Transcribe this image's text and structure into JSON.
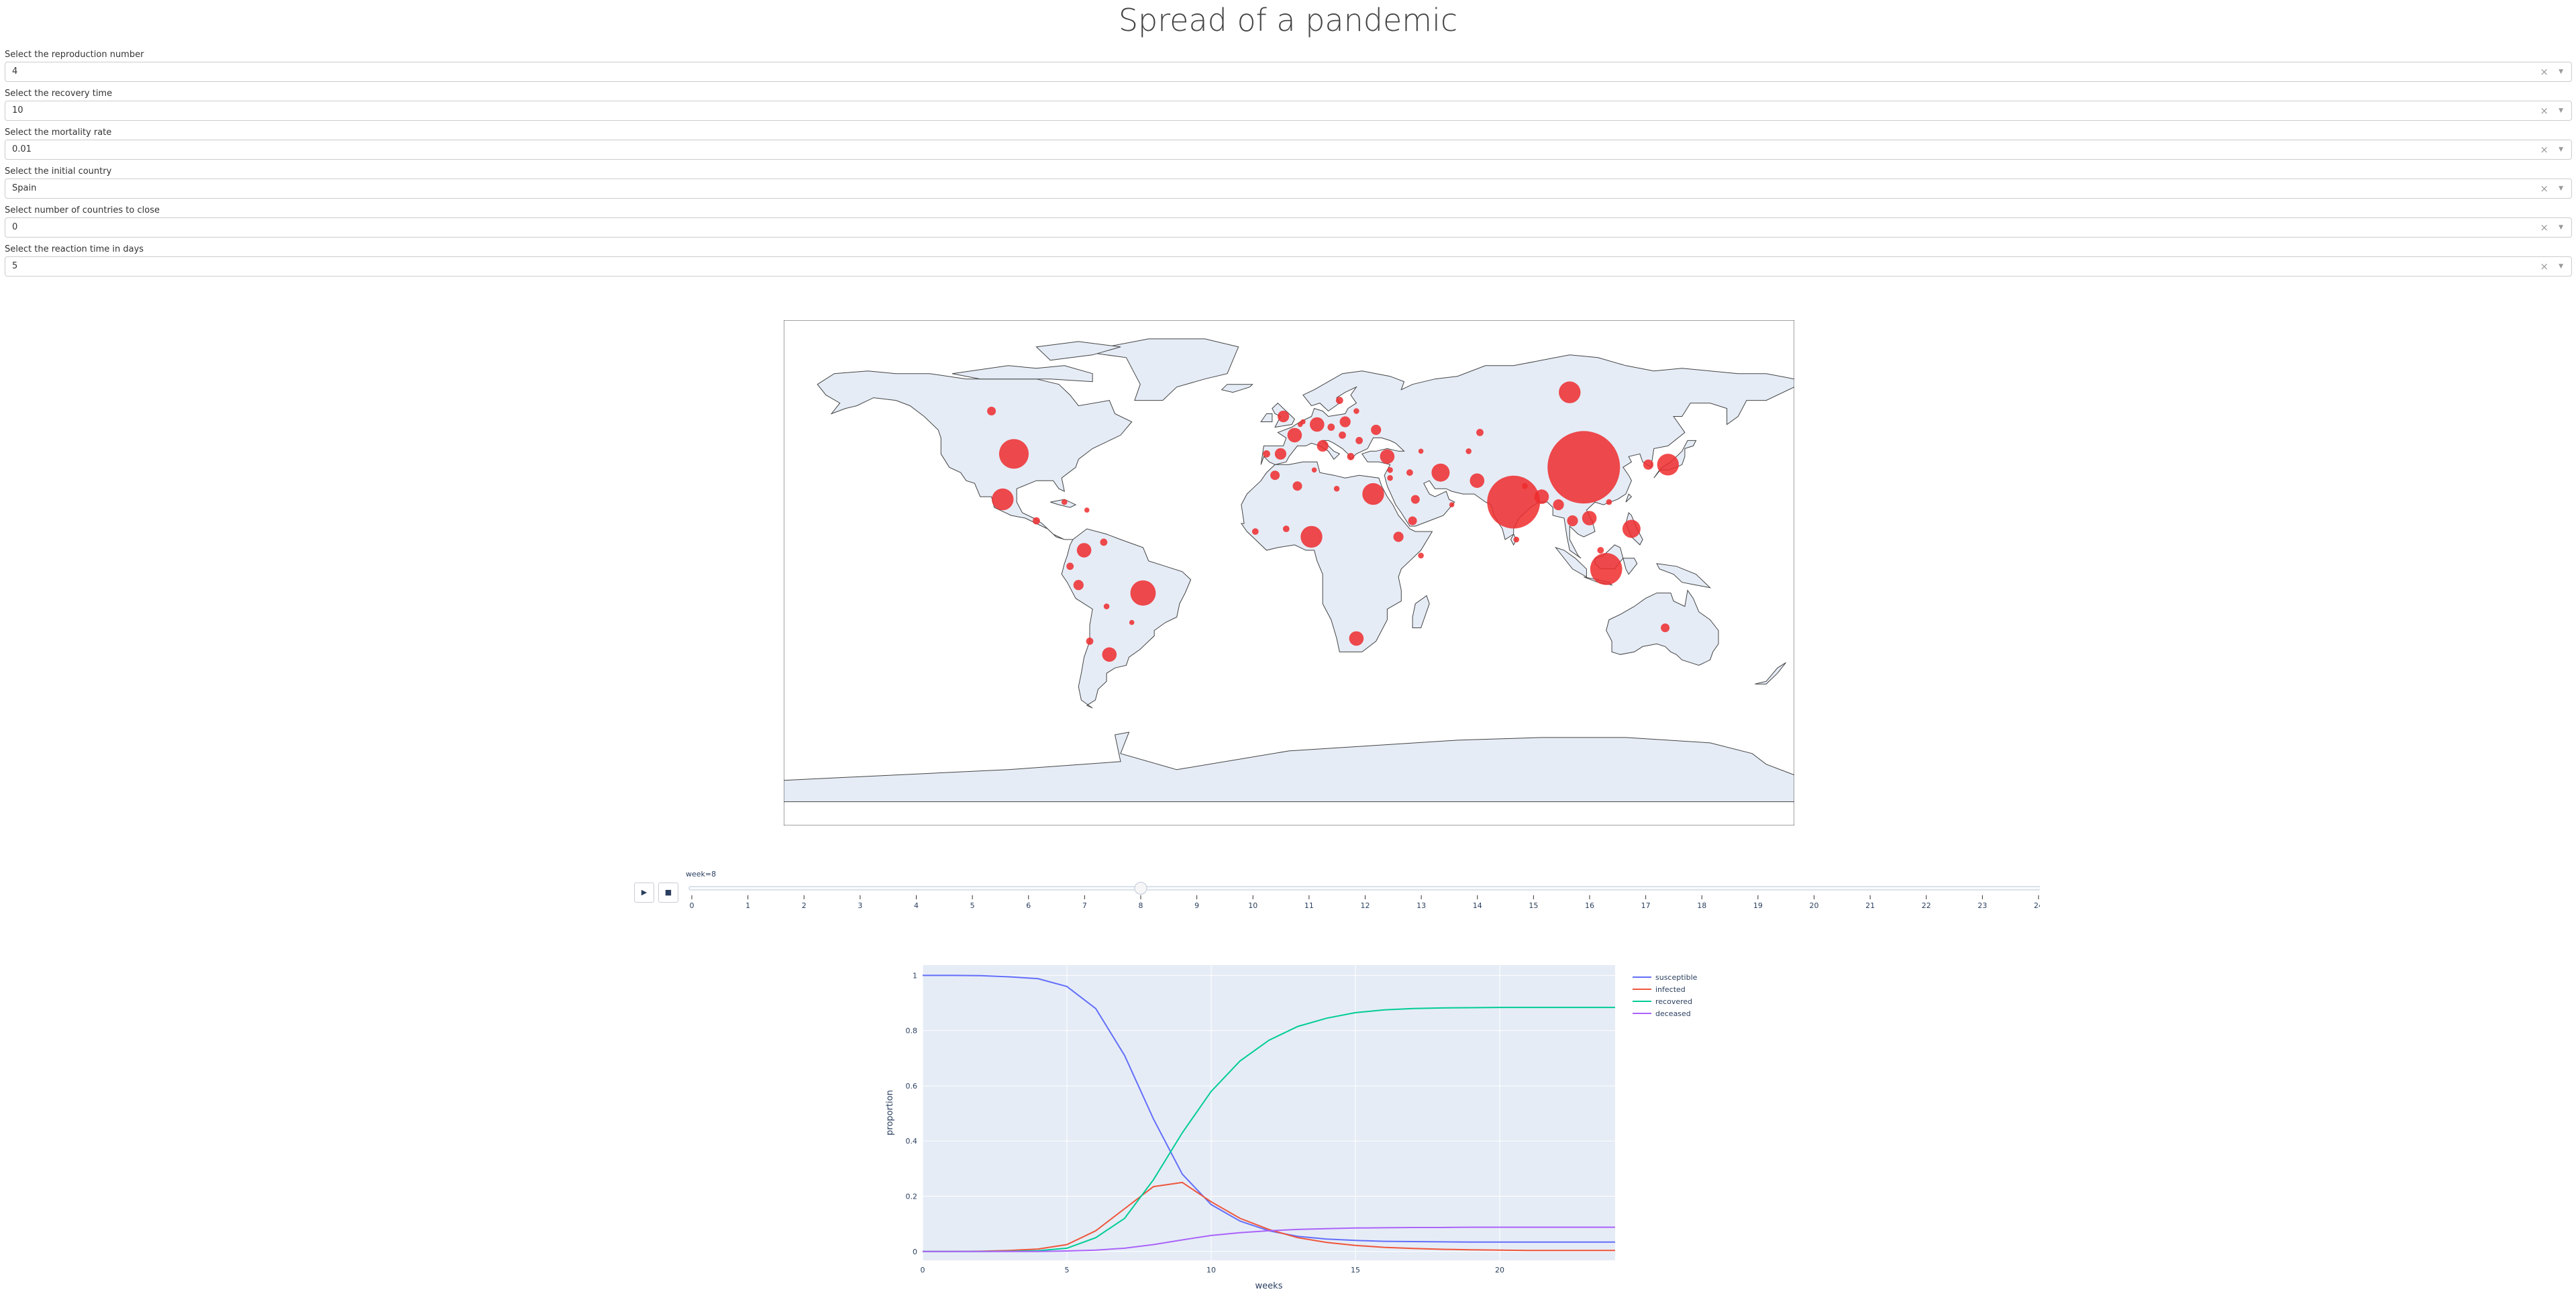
{
  "title": "Spread of a pandemic",
  "controls": [
    {
      "label": "Select the reproduction number",
      "value": "4"
    },
    {
      "label": "Select the recovery time",
      "value": "10"
    },
    {
      "label": "Select the mortality rate",
      "value": "0.01"
    },
    {
      "label": "Select the initial country",
      "value": "Spain"
    },
    {
      "label": "Select number of countries to close",
      "value": "0"
    },
    {
      "label": "Select the reaction time in days",
      "value": "5"
    }
  ],
  "icons": {
    "clear": "clear-icon",
    "dropdown": "chevron-down-icon",
    "play": "play-icon",
    "stop": "stop-icon"
  },
  "map": {
    "land_color": "#e5ecf6",
    "bubble_color": "#ef2b2d",
    "bubbles": [
      {
        "lon": 105,
        "lat": 35,
        "r": 10.0
      },
      {
        "lon": 80,
        "lat": 22,
        "r": 7.3
      },
      {
        "lon": 113,
        "lat": -3,
        "r": 4.4
      },
      {
        "lon": -98,
        "lat": 40,
        "r": 4.1
      },
      {
        "lon": -52,
        "lat": -12,
        "r": 3.5
      },
      {
        "lon": 100,
        "lat": 63,
        "r": 3.0
      },
      {
        "lon": 135,
        "lat": 36,
        "r": 3.0
      },
      {
        "lon": 8,
        "lat": 9,
        "r": 3.0
      },
      {
        "lon": 30,
        "lat": 25,
        "r": 3.0
      },
      {
        "lon": -102,
        "lat": 23,
        "r": 3.0
      },
      {
        "lon": 122,
        "lat": 12,
        "r": 2.5
      },
      {
        "lon": 107,
        "lat": 16,
        "r": 2.0
      },
      {
        "lon": 54,
        "lat": 33,
        "r": 2.5
      },
      {
        "lon": 90,
        "lat": 24,
        "r": 2.0
      },
      {
        "lon": 24,
        "lat": -29,
        "r": 2.0
      },
      {
        "lon": -64,
        "lat": -35,
        "r": 2.0
      },
      {
        "lon": -73,
        "lat": 4,
        "r": 2.0
      },
      {
        "lon": 67,
        "lat": 30,
        "r": 2.0
      },
      {
        "lon": 35,
        "lat": 39,
        "r": 2.0
      },
      {
        "lon": 10,
        "lat": 51,
        "r": 2.0
      },
      {
        "lon": 2,
        "lat": 47,
        "r": 2.0
      },
      {
        "lon": 12,
        "lat": 43,
        "r": 1.6
      },
      {
        "lon": -2,
        "lat": 54,
        "r": 1.6
      },
      {
        "lon": 20,
        "lat": 52,
        "r": 1.5
      },
      {
        "lon": 31,
        "lat": 49,
        "r": 1.4
      },
      {
        "lon": -3,
        "lat": 40,
        "r": 1.6
      },
      {
        "lon": -5,
        "lat": 32,
        "r": 1.3
      },
      {
        "lon": 3,
        "lat": 28,
        "r": 1.3
      },
      {
        "lon": 101,
        "lat": 15,
        "r": 1.5
      },
      {
        "lon": 96,
        "lat": 21,
        "r": 1.5
      },
      {
        "lon": 128,
        "lat": 36,
        "r": 1.4
      },
      {
        "lon": 134,
        "lat": -25,
        "r": 1.2
      },
      {
        "lon": 39,
        "lat": 9,
        "r": 1.4
      },
      {
        "lon": -75,
        "lat": -9,
        "r": 1.4
      },
      {
        "lon": 44,
        "lat": 15,
        "r": 1.2
      },
      {
        "lon": 45,
        "lat": 23,
        "r": 1.2
      },
      {
        "lon": -71,
        "lat": -30,
        "r": 1.0
      },
      {
        "lon": -78,
        "lat": -2,
        "r": 1.0
      },
      {
        "lon": -90,
        "lat": 15,
        "r": 1.0
      },
      {
        "lon": 68,
        "lat": 48,
        "r": 1.0
      },
      {
        "lon": 18,
        "lat": 60,
        "r": 1.0
      },
      {
        "lon": 25,
        "lat": 45,
        "r": 1.0
      },
      {
        "lon": 19,
        "lat": 47,
        "r": 1.0
      },
      {
        "lon": 15,
        "lat": 50,
        "r": 1.0
      },
      {
        "lon": -106,
        "lat": 56,
        "r": 1.2
      },
      {
        "lon": -8,
        "lat": 40,
        "r": 1.0
      },
      {
        "lon": -12,
        "lat": 11,
        "r": 0.9
      },
      {
        "lon": -1,
        "lat": 12,
        "r": 0.9
      },
      {
        "lon": 22,
        "lat": 39,
        "r": 1.0
      },
      {
        "lon": 24,
        "lat": 56,
        "r": 0.8
      },
      {
        "lon": 36,
        "lat": 34,
        "r": 0.8
      },
      {
        "lon": 36,
        "lat": 31,
        "r": 0.8
      },
      {
        "lon": 43,
        "lat": 33,
        "r": 0.9
      },
      {
        "lon": 84,
        "lat": 28,
        "r": 0.8
      },
      {
        "lon": 81,
        "lat": 8,
        "r": 0.8
      },
      {
        "lon": 111,
        "lat": 4,
        "r": 0.9
      },
      {
        "lon": 114,
        "lat": 22,
        "r": 0.8
      },
      {
        "lon": -80,
        "lat": 22,
        "r": 0.8
      },
      {
        "lon": -72,
        "lat": 19,
        "r": 0.7
      },
      {
        "lon": -66,
        "lat": 7,
        "r": 1.0
      },
      {
        "lon": -65,
        "lat": -17,
        "r": 0.8
      },
      {
        "lon": -56,
        "lat": -23,
        "r": 0.7
      },
      {
        "lon": 47,
        "lat": 41,
        "r": 0.7
      },
      {
        "lon": 4,
        "lat": 51,
        "r": 0.7
      },
      {
        "lon": 5,
        "lat": 52,
        "r": 0.7
      },
      {
        "lon": 9,
        "lat": 34,
        "r": 0.7
      },
      {
        "lon": 17,
        "lat": 27,
        "r": 0.8
      },
      {
        "lon": 47,
        "lat": 2,
        "r": 0.8
      },
      {
        "lon": 58,
        "lat": 21,
        "r": 0.7
      },
      {
        "lon": 64,
        "lat": 41,
        "r": 0.8
      }
    ]
  },
  "slider": {
    "current_label": "week=8",
    "current_value": 8,
    "min": 0,
    "max": 24,
    "ticks": [
      "0",
      "1",
      "2",
      "3",
      "4",
      "5",
      "6",
      "7",
      "8",
      "9",
      "10",
      "11",
      "12",
      "13",
      "14",
      "15",
      "16",
      "17",
      "18",
      "19",
      "20",
      "21",
      "22",
      "23",
      "24"
    ]
  },
  "chart_data": {
    "type": "line",
    "xlabel": "weeks",
    "ylabel": "proportion",
    "xlim": [
      0,
      24
    ],
    "ylim": [
      0,
      1
    ],
    "xticks": [
      0,
      5,
      10,
      15,
      20
    ],
    "yticks": [
      0,
      0.2,
      0.4,
      0.6,
      0.8,
      1
    ],
    "ytick_labels": [
      "0",
      "0.2",
      "0.4",
      "0.6",
      "0.8",
      "1"
    ],
    "legend_position": "top-right",
    "grid": true,
    "x": [
      0,
      1,
      2,
      3,
      4,
      5,
      6,
      7,
      8,
      9,
      10,
      11,
      12,
      13,
      14,
      15,
      16,
      17,
      18,
      19,
      20,
      21,
      22,
      23,
      24
    ],
    "series": [
      {
        "name": "susceptible",
        "color": "#636efa",
        "values": [
          1,
          1,
          0.999,
          0.995,
          0.988,
          0.96,
          0.88,
          0.71,
          0.48,
          0.28,
          0.17,
          0.11,
          0.075,
          0.055,
          0.045,
          0.04,
          0.037,
          0.036,
          0.035,
          0.034,
          0.034,
          0.034,
          0.034,
          0.034,
          0.034
        ]
      },
      {
        "name": "infected",
        "color": "#ef553b",
        "values": [
          0,
          0,
          0.001,
          0.004,
          0.009,
          0.025,
          0.075,
          0.155,
          0.235,
          0.25,
          0.18,
          0.12,
          0.08,
          0.05,
          0.033,
          0.022,
          0.015,
          0.011,
          0.008,
          0.006,
          0.005,
          0.004,
          0.004,
          0.004,
          0.004
        ]
      },
      {
        "name": "recovered",
        "color": "#00cc96",
        "values": [
          0,
          0,
          0,
          0.001,
          0.003,
          0.012,
          0.05,
          0.12,
          0.26,
          0.43,
          0.58,
          0.69,
          0.765,
          0.815,
          0.845,
          0.865,
          0.875,
          0.88,
          0.882,
          0.883,
          0.884,
          0.884,
          0.884,
          0.884,
          0.884
        ]
      },
      {
        "name": "deceased",
        "color": "#ab63fa",
        "values": [
          0,
          0,
          0,
          0,
          0,
          0.002,
          0.005,
          0.012,
          0.025,
          0.042,
          0.058,
          0.068,
          0.075,
          0.08,
          0.083,
          0.085,
          0.086,
          0.087,
          0.087,
          0.088,
          0.088,
          0.088,
          0.088,
          0.088,
          0.088
        ]
      }
    ]
  }
}
